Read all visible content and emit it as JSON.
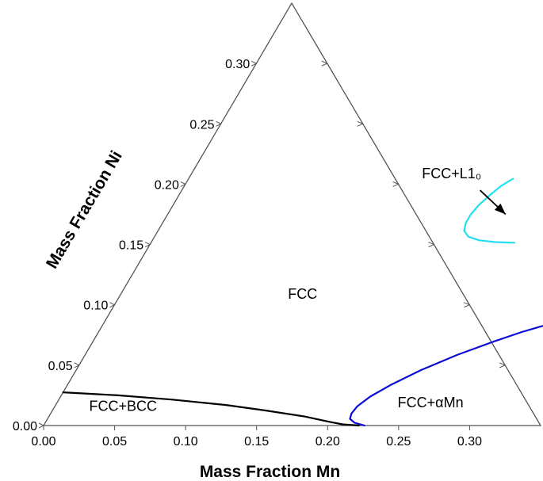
{
  "chart_data": {
    "type": "ternary",
    "xlabel": "Mass Fraction Mn",
    "ylabel": "Mass Fraction Ni",
    "x_range": [
      0,
      0.35
    ],
    "y_range": [
      0,
      0.35
    ],
    "x_ticks": [
      "0.00",
      "0.05",
      "0.10",
      "0.15",
      "0.20",
      "0.25",
      "0.30"
    ],
    "y_ticks": [
      "0.00",
      "0.05",
      "0.10",
      "0.15",
      "0.20",
      "0.25",
      "0.30"
    ],
    "regions": [
      {
        "label": "FCC",
        "mn": 0.13,
        "ni": 0.105
      },
      {
        "label": "FCC+BCC",
        "mn": 0.05,
        "ni": 0.012
      },
      {
        "label": "FCC+αMn",
        "mn": 0.265,
        "ni": 0.015
      },
      {
        "label": "FCC+L1₀",
        "mn": 0.185,
        "ni": 0.205
      }
    ],
    "arrow": {
      "from": {
        "mn": 0.21,
        "ni": 0.195
      },
      "to": {
        "mn": 0.238,
        "ni": 0.175
      }
    },
    "series": [
      {
        "color": "#000000",
        "points": [
          [
            0.0,
            0.0275
          ],
          [
            0.04,
            0.025
          ],
          [
            0.08,
            0.0215
          ],
          [
            0.12,
            0.017
          ],
          [
            0.15,
            0.0125
          ],
          [
            0.18,
            0.0075
          ],
          [
            0.2,
            0.003
          ],
          [
            0.21,
            0.001
          ],
          [
            0.222,
            0.0
          ]
        ]
      },
      {
        "color": "#0b0bd6",
        "points": [
          [
            0.226,
            0.0
          ],
          [
            0.218,
            0.0022
          ],
          [
            0.213,
            0.0055
          ],
          [
            0.2118,
            0.01
          ],
          [
            0.213,
            0.016
          ],
          [
            0.218,
            0.024
          ],
          [
            0.228,
            0.034
          ],
          [
            0.243,
            0.046
          ],
          [
            0.262,
            0.0585
          ],
          [
            0.283,
            0.07
          ],
          [
            0.298,
            0.0775
          ],
          [
            0.31,
            0.0825
          ],
          [
            0.318,
            0.0846
          ]
        ]
      },
      {
        "color": "#22e0f0",
        "points": [
          [
            0.2285,
            0.2045
          ],
          [
            0.223,
            0.1985
          ],
          [
            0.219,
            0.191
          ],
          [
            0.2152,
            0.1825
          ],
          [
            0.2135,
            0.175
          ],
          [
            0.2135,
            0.168
          ],
          [
            0.2155,
            0.1615
          ],
          [
            0.221,
            0.1565
          ],
          [
            0.23,
            0.1535
          ],
          [
            0.242,
            0.152
          ],
          [
            0.256,
            0.1515
          ]
        ]
      }
    ]
  }
}
